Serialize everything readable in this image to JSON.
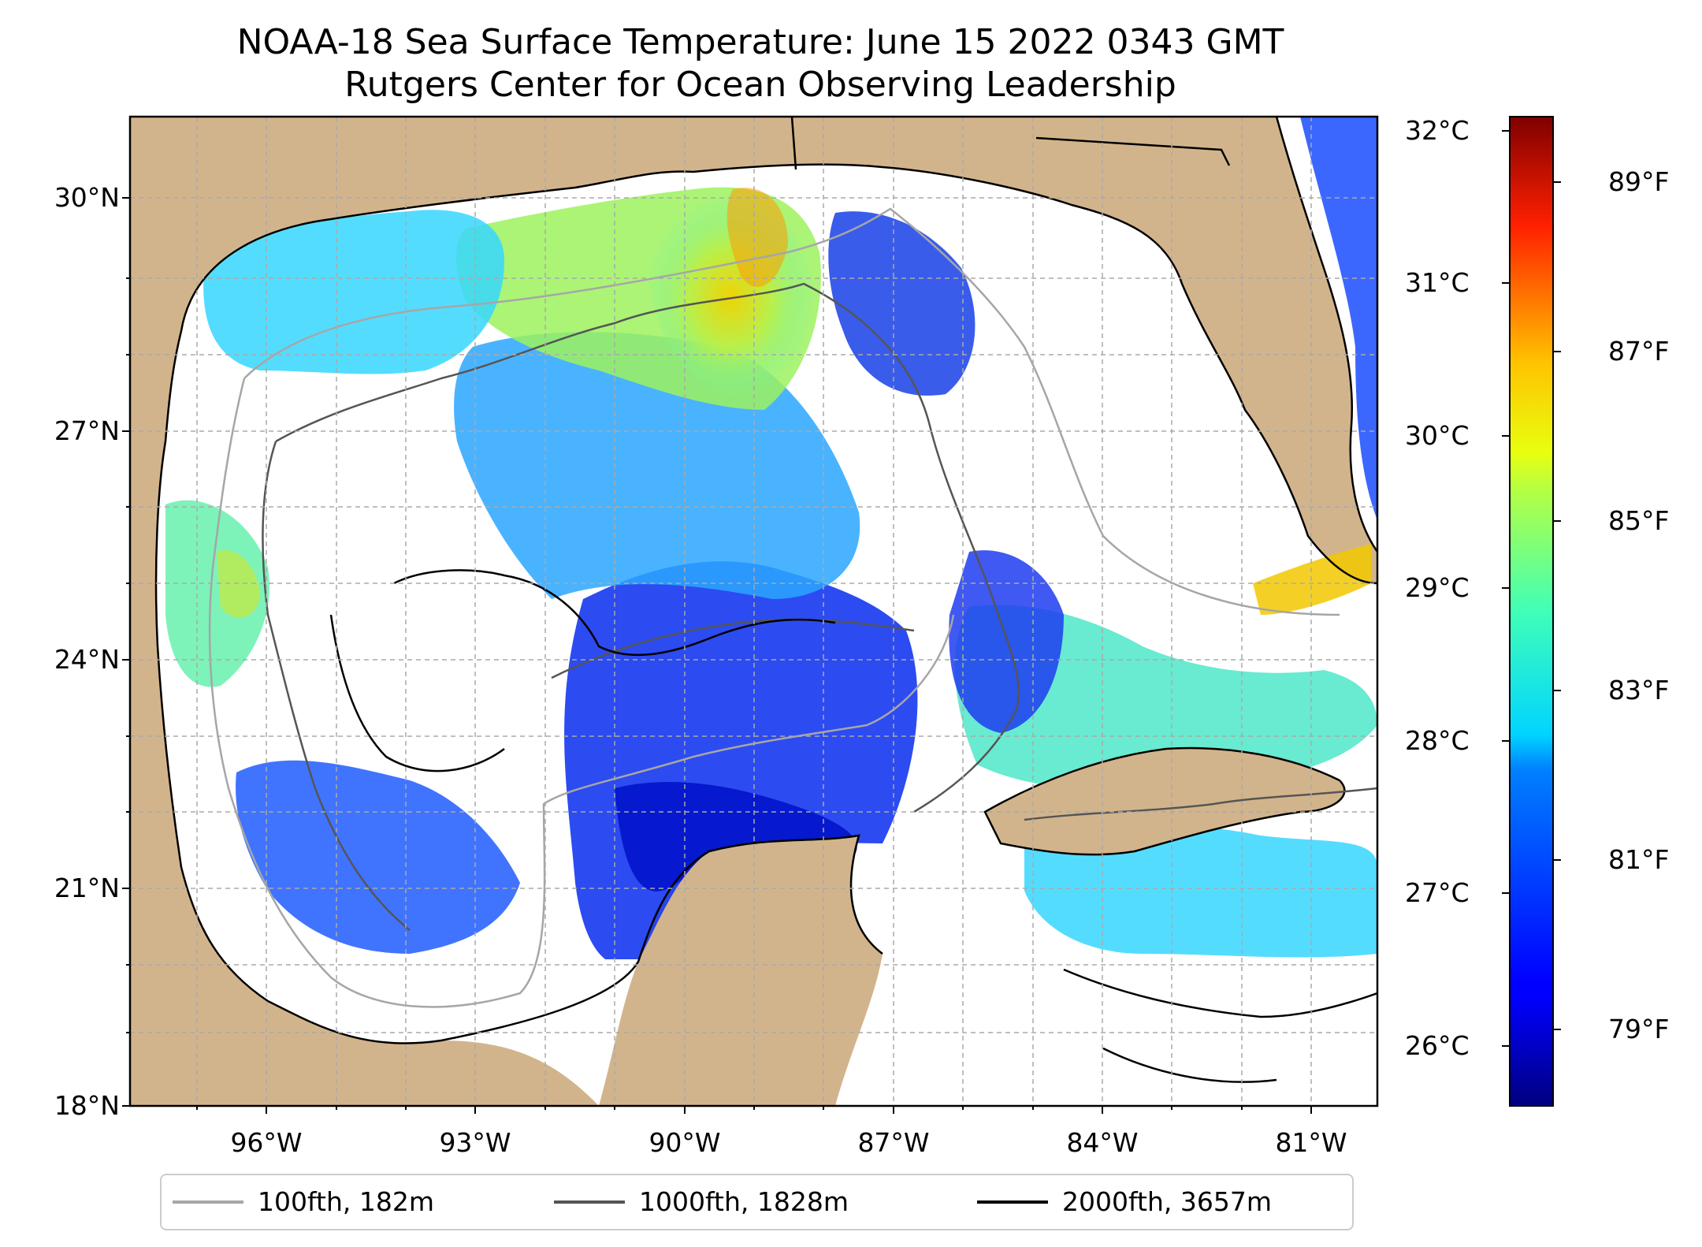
{
  "header": {
    "title_line1": "NOAA-18 Sea Surface Temperature: June 15 2022 0343 GMT",
    "title_line2": "Rutgers Center for Ocean Observing Leadership"
  },
  "map": {
    "lat_labels": [
      "30°N",
      "27°N",
      "24°N",
      "21°N",
      "18°N"
    ],
    "lon_labels": [
      "96°W",
      "93°W",
      "90°W",
      "87°W",
      "84°W",
      "81°W"
    ],
    "land_color": "#d2b48c",
    "no_data_color": "#ffffff"
  },
  "colorbar": {
    "colormap": "jet",
    "celsius_labels": [
      "32°C",
      "31°C",
      "30°C",
      "29°C",
      "28°C",
      "27°C",
      "26°C"
    ],
    "fahrenheit_labels": [
      "89°F",
      "87°F",
      "85°F",
      "83°F",
      "81°F",
      "79°F"
    ]
  },
  "legend": {
    "items": [
      {
        "label": "100fth, 182m",
        "color": "#a6a6a6"
      },
      {
        "label": "1000fth, 1828m",
        "color": "#555555"
      },
      {
        "label": "2000fth, 3657m",
        "color": "#000000"
      }
    ]
  }
}
